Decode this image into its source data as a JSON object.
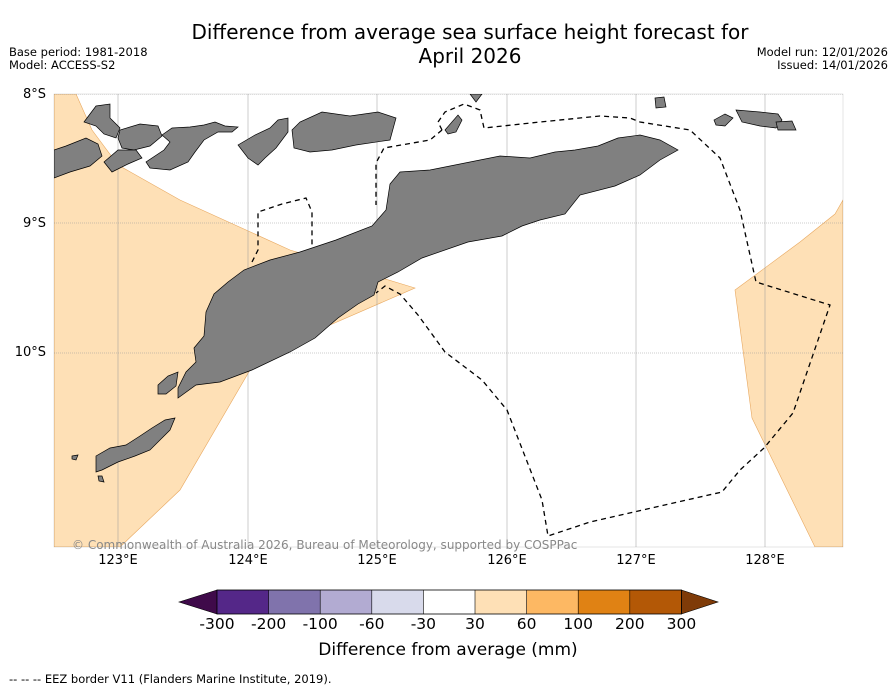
{
  "header": {
    "title_line1": "Difference from average sea surface height forecast for",
    "title_line2": "April 2026",
    "base_period": "Base period: 1981-2018",
    "model": "Model: ACCESS-S2",
    "model_run": "Model run: 12/01/2026",
    "issued": "Issued: 14/01/2026"
  },
  "map": {
    "lat_labels": [
      "8°S",
      "9°S",
      "10°S"
    ],
    "lon_labels": [
      "123°E",
      "124°E",
      "125°E",
      "126°E",
      "127°E",
      "128°E"
    ],
    "lat_range": [
      -11.5,
      -8.0
    ],
    "lon_range": [
      122.5,
      128.6
    ],
    "land_color": "#808080",
    "copyright": "© Commonwealth of Australia 2026, Bureau of Meteorology, supported by COSPPac"
  },
  "colorbar": {
    "tick_labels": [
      "-300",
      "-200",
      "-100",
      "-60",
      "-30",
      "30",
      "60",
      "100",
      "200",
      "300"
    ],
    "colors": [
      "#3f0a4a",
      "#542788",
      "#8073ac",
      "#b2abd2",
      "#d8daeb",
      "#ffffff",
      "#fee0b6",
      "#fdb863",
      "#e08214",
      "#b35806",
      "#7f3b08"
    ],
    "title": "Difference from average (mm)"
  },
  "footnote": "--  --  -- EEZ border V11 (Flanders Marine Institute, 2019)."
}
